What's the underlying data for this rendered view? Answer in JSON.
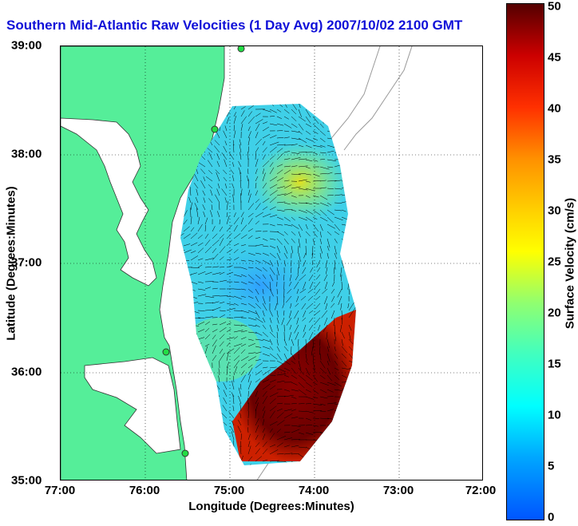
{
  "title": "Southern Mid-Atlantic Raw Velocities (1 Day Avg) 2007/10/02 2100 GMT",
  "x_axis": {
    "label": "Longitude (Degrees:Minutes)",
    "ticks": [
      "77:00",
      "76:00",
      "75:00",
      "74:00",
      "73:00",
      "72:00"
    ]
  },
  "y_axis": {
    "label": "Latitude (Degrees:Minutes)",
    "ticks": [
      "39:00",
      "38:00",
      "37:00",
      "36:00",
      "35:00"
    ]
  },
  "colorbar": {
    "label": "Surface Velocity (cm/s)",
    "ticks": [
      "50",
      "45",
      "40",
      "35",
      "30",
      "25",
      "20",
      "15",
      "10",
      "5",
      "0"
    ],
    "min": 0,
    "max": 50
  },
  "colors": {
    "land": "#55ee99",
    "title": "#1010d8"
  }
}
